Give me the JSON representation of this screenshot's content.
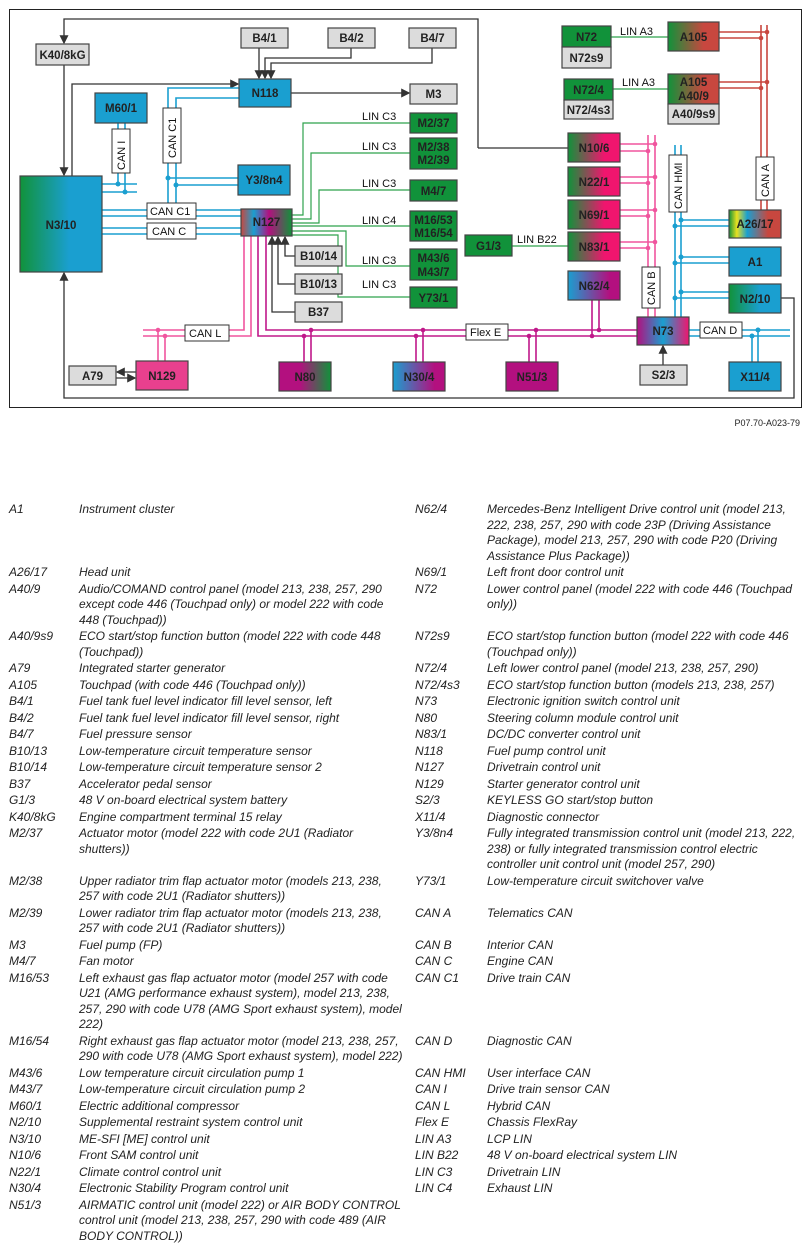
{
  "diagram": {
    "boxes": {
      "k40_8kg": "K40/8kG",
      "b4_1": "B4/1",
      "b4_2": "B4/2",
      "b4_7": "B4/7",
      "n118": "N118",
      "m3": "M3",
      "m60_1": "M60/1",
      "y3_8n4": "Y3/8n4",
      "n3_10": "N3/10",
      "n127": "N127",
      "m2_37": "M2/37",
      "m2_38": "M2/38",
      "m2_39": "M2/39",
      "m4_7": "M4/7",
      "m16_53": "M16/53",
      "m16_54": "M16/54",
      "m43_6": "M43/6",
      "m43_7": "M43/7",
      "y73_1": "Y73/1",
      "b10_14": "B10/14",
      "b10_13": "B10/13",
      "b37": "B37",
      "n129": "N129",
      "a79": "A79",
      "n80": "N80",
      "n30_4": "N30/4",
      "n51_3": "N51/3",
      "n72": "N72",
      "n72s9": "N72s9",
      "a105": "A105",
      "n72_4": "N72/4",
      "n72_4s3": "N72/4s3",
      "a105b": "A105",
      "a40_9": "A40/9",
      "a40_9s9": "A40/9s9",
      "n10_6": "N10/6",
      "n22_1": "N22/1",
      "n69_1": "N69/1",
      "n83_1": "N83/1",
      "g1_3": "G1/3",
      "n62_4": "N62/4",
      "a26_17": "A26/17",
      "a1": "A1",
      "n2_10": "N2/10",
      "n73": "N73",
      "s2_3": "S2/3",
      "x11_4": "X11/4"
    },
    "buses": {
      "can_i": "CAN I",
      "can_c1_v": "CAN C1",
      "can_c1": "CAN C1",
      "can_c": "CAN C",
      "can_l": "CAN L",
      "flex_e": "Flex E",
      "can_b": "CAN B",
      "can_hmi": "CAN HMI",
      "can_a": "CAN A",
      "can_d": "CAN D",
      "lin_c3": "LIN C3",
      "lin_c4": "LIN C4",
      "lin_a3": "LIN A3",
      "lin_b22": "LIN B22"
    },
    "colors": {
      "can_blue": "#1a9fd0",
      "can_pink": "#f0559e",
      "flexray_magenta": "#c0188a",
      "can_a_red": "#c8473f",
      "lin_green": "#2ea24c",
      "sensor_gray": "#dcdcdc"
    }
  },
  "caption": "P07.70-A023-79",
  "legend": {
    "rows": [
      [
        [
          "A1",
          "Instrument cluster"
        ],
        [
          "N62/4",
          "Mercedes-Benz Intelligent Drive control unit (model 213, 222, 238, 257, 290 with code 23P (Driving Assistance Package), model 213, 257, 290 with code P20 (Driving Assistance Plus Package))"
        ]
      ],
      [
        [
          "A26/17",
          "Head unit"
        ],
        [
          "N69/1",
          "Left front door control unit"
        ]
      ],
      [
        [
          "A40/9",
          "Audio/COMAND control panel (model 213, 238, 257, 290 except code 446 (Touchpad only) or model 222 with code 448 (Touchpad))"
        ],
        [
          "N72",
          "Lower control panel (model 222 with code 446 (Touchpad only))"
        ]
      ],
      [
        [
          "A40/9s9",
          "ECO start/stop function button (model 222 with code 448 (Touchpad))"
        ],
        [
          "N72s9",
          "ECO start/stop function button (model 222 with code 446 (Touchpad only))"
        ]
      ],
      [
        [
          "A79",
          "Integrated starter generator"
        ],
        [
          "N72/4",
          "Left lower control panel (model 213, 238, 257, 290)"
        ]
      ],
      [
        [
          "A105",
          "Touchpad (with code 446 (Touchpad only))"
        ],
        [
          "N72/4s3",
          "ECO start/stop function button (models 213, 238, 257)"
        ]
      ],
      [
        [
          "B4/1",
          "Fuel tank fuel level indicator fill level sensor, left"
        ],
        [
          "N73",
          "Electronic ignition switch control unit"
        ]
      ],
      [
        [
          "B4/2",
          "Fuel tank fuel level indicator fill level sensor, right"
        ],
        [
          "N80",
          "Steering column module control unit"
        ]
      ],
      [
        [
          "B4/7",
          "Fuel pressure sensor"
        ],
        [
          "N83/1",
          "DC/DC converter control unit"
        ]
      ],
      [
        [
          "B10/13",
          "Low-temperature circuit temperature sensor"
        ],
        [
          "N118",
          "Fuel pump control unit"
        ]
      ],
      [
        [
          "B10/14",
          "Low-temperature circuit temperature sensor 2"
        ],
        [
          "N127",
          "Drivetrain control unit"
        ]
      ],
      [
        [
          "B37",
          "Accelerator pedal sensor"
        ],
        [
          "N129",
          "Starter generator control unit"
        ]
      ],
      [
        [
          "G1/3",
          "48 V on-board electrical system battery"
        ],
        [
          "S2/3",
          "KEYLESS GO start/stop button"
        ]
      ],
      [
        [
          "K40/8kG",
          "Engine compartment terminal 15 relay"
        ],
        [
          "X11/4",
          "Diagnostic connector"
        ]
      ],
      [
        [
          "M2/37",
          "Actuator motor (model 222 with code 2U1 (Radiator shutters))"
        ],
        [
          "Y3/8n4",
          "Fully integrated transmission control unit (model 213, 222, 238) or fully integrated transmission control electric controller unit control unit (model 257, 290)"
        ]
      ],
      [
        [
          "M2/38",
          "Upper radiator trim flap actuator motor (models 213, 238, 257 with code 2U1 (Radiator shutters))"
        ],
        [
          "Y73/1",
          "Low-temperature circuit switchover valve"
        ]
      ],
      [
        [
          "M2/39",
          "Lower radiator trim flap actuator motor (models 213, 238, 257 with code 2U1 (Radiator shutters))"
        ],
        [
          "CAN A",
          "Telematics CAN"
        ]
      ],
      [
        [
          "M3",
          "Fuel pump (FP)"
        ],
        [
          "CAN B",
          "Interior CAN"
        ]
      ],
      [
        [
          "M4/7",
          "Fan motor"
        ],
        [
          "CAN C",
          "Engine CAN"
        ]
      ],
      [
        [
          "M16/53",
          "Left exhaust gas flap actuator motor (model 257 with code U21 (AMG performance exhaust system), model 213, 238, 257, 290 with code U78 (AMG Sport exhaust system), model 222)"
        ],
        [
          "CAN C1",
          "Drive train CAN"
        ]
      ],
      [
        [
          "M16/54",
          "Right exhaust gas flap actuator motor (model 213, 238, 257, 290 with code U78 (AMG Sport exhaust system), model 222)"
        ],
        [
          "CAN D",
          "Diagnostic CAN"
        ]
      ],
      [
        [
          "M43/6",
          "Low temperature circuit circulation pump 1"
        ],
        [
          "CAN HMI",
          "User interface CAN"
        ]
      ],
      [
        [
          "M43/7",
          "Low-temperature circuit circulation pump 2"
        ],
        [
          "CAN I",
          "Drive train sensor CAN"
        ]
      ],
      [
        [
          "M60/1",
          "Electric additional compressor"
        ],
        [
          "CAN L",
          "Hybrid CAN"
        ]
      ],
      [
        [
          "N2/10",
          "Supplemental restraint system control unit"
        ],
        [
          "Flex E",
          "Chassis FlexRay"
        ]
      ],
      [
        [
          "N3/10",
          "ME-SFI [ME] control unit"
        ],
        [
          "LIN A3",
          "LCP LIN"
        ]
      ],
      [
        [
          "N10/6",
          "Front SAM control unit"
        ],
        [
          "LIN B22",
          "48 V on-board electrical system LIN"
        ]
      ],
      [
        [
          "N22/1",
          "Climate control control unit"
        ],
        [
          "LIN C3",
          "Drivetrain LIN"
        ]
      ],
      [
        [
          "N30/4",
          "Electronic Stability Program control unit"
        ],
        [
          "LIN C4",
          "Exhaust LIN"
        ]
      ],
      [
        [
          "N51/3",
          "AIRMATIC control unit (model 222) or AIR BODY CONTROL control unit (model 213, 238, 257, 290 with code 489 (AIR BODY CONTROL))"
        ],
        [
          "",
          ""
        ]
      ]
    ]
  }
}
